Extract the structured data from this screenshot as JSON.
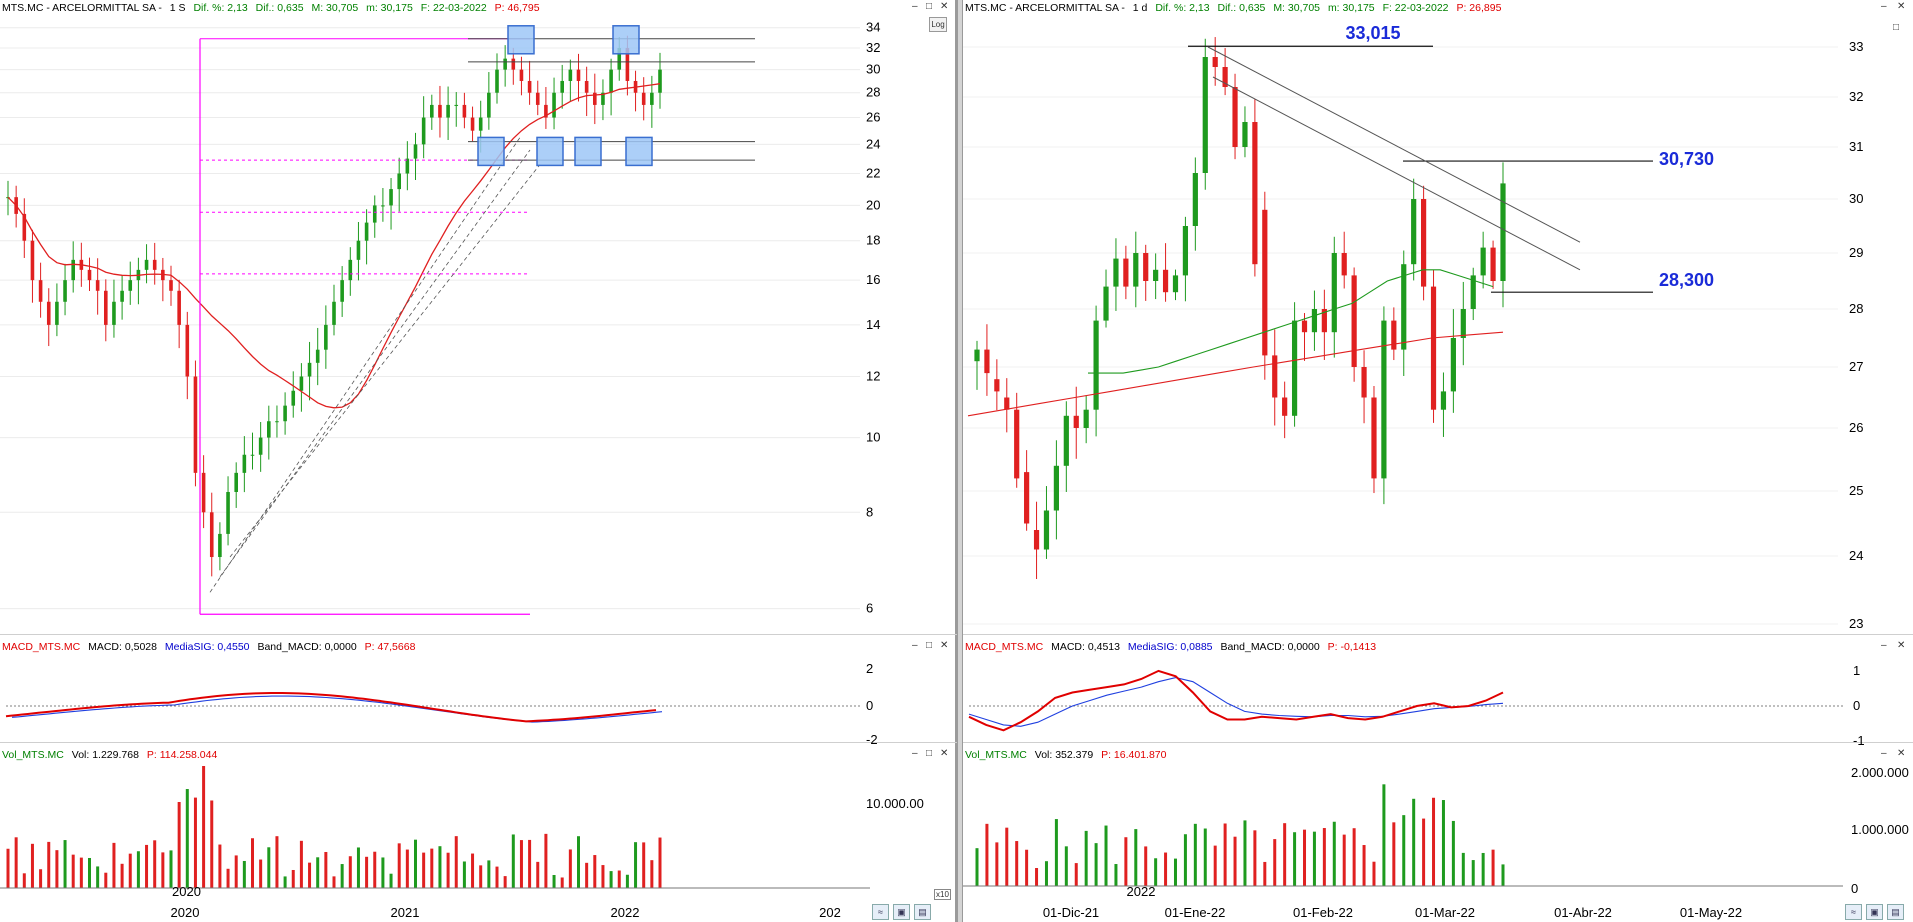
{
  "colors": {
    "up": "#1e9a1e",
    "down": "#e02020",
    "ma_red": "#e02020",
    "ma_green": "#1e9a1e",
    "macd": "#e00000",
    "signal": "#2040e0",
    "channel": "#ff00ff",
    "box": "#3a6fd0",
    "annot": "#1a2bd8"
  },
  "left": {
    "header": {
      "title": "MTS.MC - ARCELORMITTAL SA -",
      "timeframe": "1 S",
      "dif_pct": "Dif. %: 2,13",
      "dif": "Dif.: 0,635",
      "max": "M: 30,705",
      "min": "m: 30,175",
      "fecha": "F: 22-03-2022",
      "p": "P: 46,795"
    },
    "log_button": "Log",
    "y_ticks": [
      "34",
      "32",
      "30",
      "28",
      "26",
      "24",
      "22",
      "20",
      "18",
      "16",
      "14",
      "12",
      "10",
      "8",
      "6"
    ],
    "x_ticks": [
      "2020",
      "2021",
      "2022",
      "202"
    ],
    "inset_year": "2020",
    "macd_header": {
      "name": "MACD_MTS.MC",
      "macd": "MACD: 0,5028",
      "sig": "MediaSIG: 0,4550",
      "band": "Band_MACD: 0,0000",
      "p": "P: 47,5668"
    },
    "macd_ticks": [
      "2",
      "0",
      "-2"
    ],
    "vol_header": {
      "name": "Vol_MTS.MC",
      "vol": "Vol: 1.229.768",
      "p": "P: 114.258.044"
    },
    "vol_ticks": [
      "10.000.00"
    ],
    "x10": "x10"
  },
  "right": {
    "header": {
      "title": "MTS.MC - ARCELORMITTAL SA -",
      "timeframe": "1 d",
      "dif_pct": "Dif. %: 2,13",
      "dif": "Dif.: 0,635",
      "max": "M: 30,705",
      "min": "m: 30,175",
      "fecha": "F: 22-03-2022",
      "p": "P: 26,895"
    },
    "y_ticks": [
      "33",
      "32",
      "31",
      "30",
      "29",
      "28",
      "27",
      "26",
      "25",
      "24",
      "23"
    ],
    "x_ticks": [
      "01-Dic-21",
      "01-Ene-22",
      "01-Feb-22",
      "01-Mar-22",
      "01-Abr-22",
      "01-May-22"
    ],
    "inset_year": "2022",
    "annotations": {
      "top": "33,015",
      "mid": "30,730",
      "low": "28,300"
    },
    "macd_header": {
      "name": "MACD_MTS.MC",
      "macd": "MACD: 0,4513",
      "sig": "MediaSIG: 0,0885",
      "band": "Band_MACD: 0,0000",
      "p": "P: -0,1413"
    },
    "macd_ticks": [
      "1",
      "0",
      "-1"
    ],
    "vol_header": {
      "name": "Vol_MTS.MC",
      "vol": "Vol: 352.379",
      "p": "P: 16.401.870"
    },
    "vol_ticks": [
      "2.000.000",
      "1.000.000",
      "0"
    ]
  },
  "chart_data": [
    {
      "type": "candlestick",
      "title": "MTS.MC - ARCELORMITTAL SA - 1 S",
      "scale": "log",
      "ylim": [
        5.8,
        35
      ],
      "closes_approx": [
        20.5,
        19.5,
        18,
        16,
        15,
        14,
        15,
        16,
        17,
        16.5,
        16,
        15.5,
        14,
        15,
        15.5,
        16,
        16.5,
        17,
        16.5,
        16,
        15.5,
        14,
        12,
        9,
        8,
        7,
        7.5,
        8.5,
        9,
        9.5,
        9.5,
        10,
        10.5,
        10.5,
        11,
        11.5,
        12,
        12.5,
        13,
        14,
        15,
        16,
        17,
        18,
        19,
        20,
        20,
        21,
        22,
        23,
        24,
        26,
        27,
        26,
        27,
        27,
        26,
        25,
        26,
        28,
        30,
        31,
        30,
        29,
        28,
        27,
        26,
        28,
        29,
        30,
        29,
        28,
        27,
        28,
        30,
        32,
        29,
        28,
        27,
        28,
        30
      ],
      "overlays": {
        "ma": "red",
        "resistance": [
          32.9,
          30.7
        ],
        "support": [
          24.2,
          22.9
        ],
        "pink_levels": [
          22.9,
          19.6,
          16.3
        ]
      }
    },
    {
      "type": "candlestick",
      "title": "MTS.MC - ARCELORMITTAL SA - 1 d",
      "ylim": [
        22.9,
        33.2
      ],
      "x_ticks": [
        "01-Dic-21",
        "01-Ene-22",
        "01-Feb-22",
        "01-Mar-22",
        "01-Abr-22",
        "01-May-22"
      ],
      "candles": [
        [
          27.1,
          27.3
        ],
        [
          27.3,
          26.9
        ],
        [
          26.8,
          26.6
        ],
        [
          26.5,
          26.3
        ],
        [
          26.3,
          25.2
        ],
        [
          25.3,
          24.5
        ],
        [
          24.4,
          24.1
        ],
        [
          24.1,
          24.7
        ],
        [
          24.7,
          25.4
        ],
        [
          25.4,
          26.2
        ],
        [
          26.2,
          26.0
        ],
        [
          26.0,
          26.3
        ],
        [
          26.3,
          27.8
        ],
        [
          27.8,
          28.4
        ],
        [
          28.4,
          28.9
        ],
        [
          28.9,
          28.4
        ],
        [
          28.4,
          29.0
        ],
        [
          29.0,
          28.5
        ],
        [
          28.5,
          28.7
        ],
        [
          28.7,
          28.3
        ],
        [
          28.3,
          28.6
        ],
        [
          28.6,
          29.5
        ],
        [
          29.5,
          30.5
        ],
        [
          30.5,
          32.8
        ],
        [
          32.8,
          32.6
        ],
        [
          32.6,
          32.2
        ],
        [
          32.2,
          31.0
        ],
        [
          31.0,
          31.5
        ],
        [
          31.5,
          28.8
        ],
        [
          29.8,
          27.2
        ],
        [
          27.2,
          26.5
        ],
        [
          26.5,
          26.2
        ],
        [
          26.2,
          27.8
        ],
        [
          27.8,
          27.6
        ],
        [
          27.6,
          28.0
        ],
        [
          28.0,
          27.6
        ],
        [
          27.6,
          29.0
        ],
        [
          29.0,
          28.6
        ],
        [
          28.6,
          27.0
        ],
        [
          27.0,
          26.5
        ],
        [
          26.5,
          25.2
        ],
        [
          25.2,
          27.8
        ],
        [
          27.8,
          27.3
        ],
        [
          27.3,
          28.8
        ],
        [
          28.8,
          30.0
        ],
        [
          30.0,
          28.4
        ],
        [
          28.4,
          26.3
        ],
        [
          26.3,
          26.6
        ],
        [
          26.6,
          27.5
        ],
        [
          27.5,
          28.0
        ],
        [
          28.0,
          28.6
        ],
        [
          28.6,
          29.1
        ],
        [
          29.1,
          28.5
        ],
        [
          28.5,
          30.3
        ]
      ],
      "ma_green": [
        26.9,
        26.9,
        26.9,
        26.95,
        27.0,
        27.1,
        27.2,
        27.3,
        27.4,
        27.5,
        27.6,
        27.7,
        27.8,
        27.9,
        28.0,
        28.1,
        28.3,
        28.5,
        28.6,
        28.7,
        28.7,
        28.6,
        28.5,
        28.4
      ],
      "ma_red": [
        26.2,
        26.3,
        26.4,
        26.5,
        26.6,
        26.7,
        26.8,
        26.9,
        27.0,
        27.1,
        27.2,
        27.3,
        27.4,
        27.5,
        27.55,
        27.6
      ],
      "levels": {
        "top": 33.015,
        "mid": 30.73,
        "low": 28.3
      }
    }
  ]
}
